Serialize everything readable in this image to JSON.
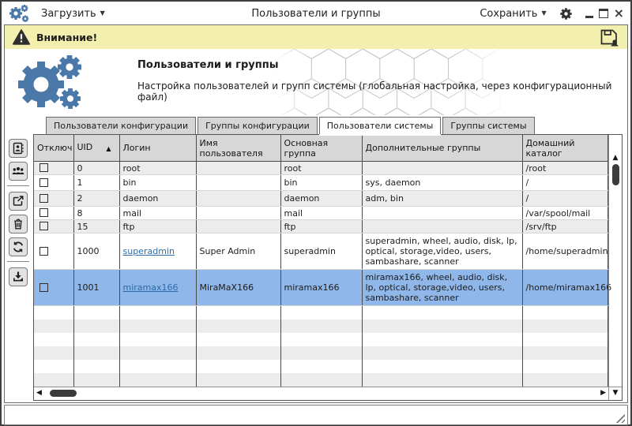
{
  "window": {
    "load_label": "Загрузить",
    "title": "Пользователи и группы",
    "save_label": "Сохранить"
  },
  "warning": {
    "text": "Внимание!"
  },
  "header": {
    "title": "Пользователи и группы",
    "subtitle": "Настройка пользователей и групп системы (глобальная настройка, через конфигурационный файл)"
  },
  "tabs": [
    {
      "id": "users-config",
      "label": "Пользователи конфигурации",
      "active": false
    },
    {
      "id": "groups-config",
      "label": "Группы конфигурации",
      "active": false
    },
    {
      "id": "users-system",
      "label": "Пользователи системы",
      "active": true
    },
    {
      "id": "groups-system",
      "label": "Группы системы",
      "active": false
    }
  ],
  "toolbar": [
    {
      "icon": "address-book-icon"
    },
    {
      "icon": "user-group-icon"
    },
    {
      "icon": "export-icon"
    },
    {
      "icon": "trash-icon"
    },
    {
      "icon": "refresh-icon"
    },
    {
      "icon": "download-icon"
    }
  ],
  "table": {
    "columns": [
      "Отключ",
      "UID",
      "Логин",
      "Имя пользователя",
      "Основная группа",
      "Дополнительные группы",
      "Домашний каталог"
    ],
    "sort_column": "UID",
    "sort_direction": "asc",
    "rows": [
      {
        "disabled": false,
        "uid": "0",
        "login": "root",
        "link": false,
        "name": "",
        "group": "root",
        "extra_groups": "",
        "home": "/root",
        "selected": false
      },
      {
        "disabled": false,
        "uid": "1",
        "login": "bin",
        "link": false,
        "name": "",
        "group": "bin",
        "extra_groups": "sys, daemon",
        "home": "/",
        "selected": false
      },
      {
        "disabled": false,
        "uid": "2",
        "login": "daemon",
        "link": false,
        "name": "",
        "group": "daemon",
        "extra_groups": "adm, bin",
        "home": "/",
        "selected": false
      },
      {
        "disabled": false,
        "uid": "8",
        "login": "mail",
        "link": false,
        "name": "",
        "group": "mail",
        "extra_groups": "",
        "home": "/var/spool/mail",
        "selected": false
      },
      {
        "disabled": false,
        "uid": "15",
        "login": "ftp",
        "link": false,
        "name": "",
        "group": "ftp",
        "extra_groups": "",
        "home": "/srv/ftp",
        "selected": false
      },
      {
        "disabled": false,
        "uid": "1000",
        "login": "superadmin",
        "link": true,
        "name": "Super Admin",
        "group": "superadmin",
        "extra_groups": "superadmin, wheel, audio, disk, lp, optical, storage,video, users, sambashare, scanner",
        "home": "/home/superadmin",
        "selected": false
      },
      {
        "disabled": false,
        "uid": "1001",
        "login": "miramax166",
        "link": true,
        "name": "MiraMaX166",
        "group": "miramax166",
        "extra_groups": "miramax166, wheel, audio, disk, lp, optical, storage,video, users, sambashare, scanner",
        "home": "/home/miramax166",
        "selected": true
      }
    ],
    "filler_row_count": 6
  },
  "colors": {
    "accent_gears": "#4a78a8",
    "warning_bg": "#f3efae",
    "selection_blue": "#8fb7e9",
    "link_blue": "#2d6ca8",
    "header_gray": "#d7d7d7",
    "alt_row_gray": "#ececec",
    "scroll_thumb": "#3b3b3b",
    "icon_dark": "#2b2b2b"
  }
}
